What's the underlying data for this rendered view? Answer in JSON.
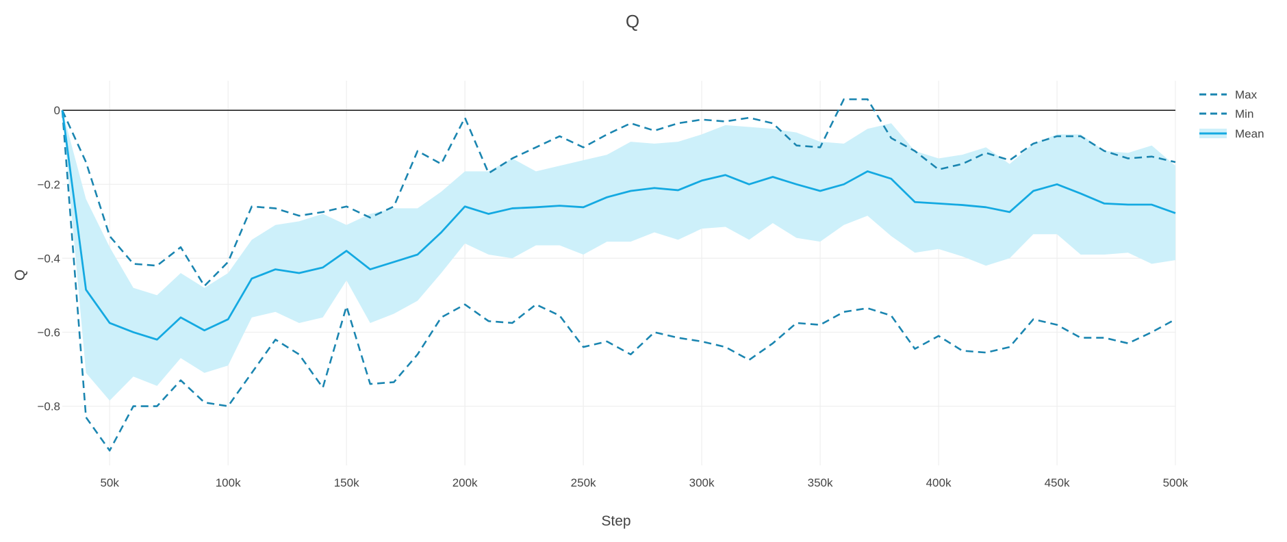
{
  "chart_data": {
    "type": "line",
    "title": "Q",
    "xlabel": "Step",
    "ylabel": "Q",
    "xlim": [
      30000,
      500000
    ],
    "ylim": [
      -0.96,
      0.08
    ],
    "x_ticks": [
      50000,
      100000,
      150000,
      200000,
      250000,
      300000,
      350000,
      400000,
      450000,
      500000
    ],
    "x_tick_labels": [
      "50k",
      "100k",
      "150k",
      "200k",
      "250k",
      "300k",
      "350k",
      "400k",
      "450k",
      "500k"
    ],
    "y_ticks": [
      0,
      -0.2,
      -0.4,
      -0.6,
      -0.8
    ],
    "y_tick_labels": [
      "0",
      "−0.2",
      "−0.4",
      "−0.6",
      "−0.8"
    ],
    "grid": true,
    "zero_line": true,
    "legend_position": "top-right",
    "colors": {
      "extremes": "#1a85b0",
      "mean": "#14a9e1",
      "band": "#cdf0fa",
      "grid": "#eeeeee",
      "zero_line": "#222222"
    },
    "x": [
      30000,
      40000,
      50000,
      60000,
      70000,
      80000,
      90000,
      100000,
      110000,
      120000,
      130000,
      140000,
      150000,
      160000,
      170000,
      180000,
      190000,
      200000,
      210000,
      220000,
      230000,
      240000,
      250000,
      260000,
      270000,
      280000,
      290000,
      300000,
      310000,
      320000,
      330000,
      340000,
      350000,
      360000,
      370000,
      380000,
      390000,
      400000,
      410000,
      420000,
      430000,
      440000,
      450000,
      460000,
      470000,
      480000,
      490000,
      500000
    ],
    "series": [
      {
        "name": "Max",
        "style": "dash",
        "values": [
          0.0,
          -0.14,
          -0.34,
          -0.415,
          -0.42,
          -0.37,
          -0.475,
          -0.41,
          -0.26,
          -0.265,
          -0.285,
          -0.275,
          -0.26,
          -0.29,
          -0.26,
          -0.11,
          -0.145,
          -0.02,
          -0.17,
          -0.13,
          -0.1,
          -0.07,
          -0.1,
          -0.065,
          -0.035,
          -0.055,
          -0.035,
          -0.025,
          -0.03,
          -0.02,
          -0.035,
          -0.095,
          -0.1,
          0.03,
          0.03,
          -0.075,
          -0.11,
          -0.16,
          -0.145,
          -0.115,
          -0.135,
          -0.09,
          -0.07,
          -0.07,
          -0.11,
          -0.13,
          -0.125,
          -0.14
        ]
      },
      {
        "name": "Min",
        "style": "dash",
        "values": [
          0.0,
          -0.83,
          -0.92,
          -0.8,
          -0.8,
          -0.73,
          -0.79,
          -0.8,
          -0.71,
          -0.62,
          -0.66,
          -0.75,
          -0.53,
          -0.74,
          -0.735,
          -0.66,
          -0.56,
          -0.525,
          -0.57,
          -0.575,
          -0.525,
          -0.555,
          -0.64,
          -0.625,
          -0.66,
          -0.6,
          -0.615,
          -0.625,
          -0.64,
          -0.675,
          -0.63,
          -0.575,
          -0.58,
          -0.545,
          -0.535,
          -0.555,
          -0.645,
          -0.61,
          -0.65,
          -0.655,
          -0.64,
          -0.565,
          -0.58,
          -0.615,
          -0.615,
          -0.63,
          -0.6,
          -0.565
        ]
      },
      {
        "name": "Mean",
        "style": "solid",
        "values": [
          0.0,
          -0.485,
          -0.575,
          -0.6,
          -0.62,
          -0.56,
          -0.595,
          -0.565,
          -0.455,
          -0.43,
          -0.44,
          -0.425,
          -0.38,
          -0.43,
          -0.41,
          -0.39,
          -0.33,
          -0.26,
          -0.28,
          -0.265,
          -0.262,
          -0.258,
          -0.262,
          -0.235,
          -0.218,
          -0.21,
          -0.216,
          -0.19,
          -0.175,
          -0.2,
          -0.18,
          -0.2,
          -0.218,
          -0.2,
          -0.165,
          -0.185,
          -0.248,
          -0.252,
          -0.256,
          -0.262,
          -0.275,
          -0.218,
          -0.2,
          -0.225,
          -0.252,
          -0.255,
          -0.255,
          -0.278
        ],
        "band_upper": [
          0.0,
          -0.24,
          -0.37,
          -0.48,
          -0.5,
          -0.44,
          -0.48,
          -0.44,
          -0.35,
          -0.31,
          -0.3,
          -0.28,
          -0.31,
          -0.28,
          -0.265,
          -0.265,
          -0.22,
          -0.165,
          -0.165,
          -0.13,
          -0.165,
          -0.15,
          -0.135,
          -0.12,
          -0.085,
          -0.09,
          -0.085,
          -0.065,
          -0.04,
          -0.045,
          -0.05,
          -0.06,
          -0.085,
          -0.09,
          -0.05,
          -0.035,
          -0.11,
          -0.13,
          -0.12,
          -0.1,
          -0.145,
          -0.09,
          -0.065,
          -0.065,
          -0.11,
          -0.115,
          -0.095,
          -0.15
        ],
        "band_lower": [
          0.0,
          -0.71,
          -0.785,
          -0.72,
          -0.745,
          -0.67,
          -0.71,
          -0.69,
          -0.56,
          -0.545,
          -0.575,
          -0.56,
          -0.46,
          -0.575,
          -0.55,
          -0.515,
          -0.44,
          -0.36,
          -0.39,
          -0.4,
          -0.365,
          -0.365,
          -0.39,
          -0.355,
          -0.355,
          -0.33,
          -0.35,
          -0.32,
          -0.315,
          -0.35,
          -0.305,
          -0.345,
          -0.355,
          -0.31,
          -0.285,
          -0.34,
          -0.385,
          -0.375,
          -0.395,
          -0.42,
          -0.4,
          -0.335,
          -0.335,
          -0.39,
          -0.39,
          -0.385,
          -0.415,
          -0.405
        ]
      }
    ]
  }
}
